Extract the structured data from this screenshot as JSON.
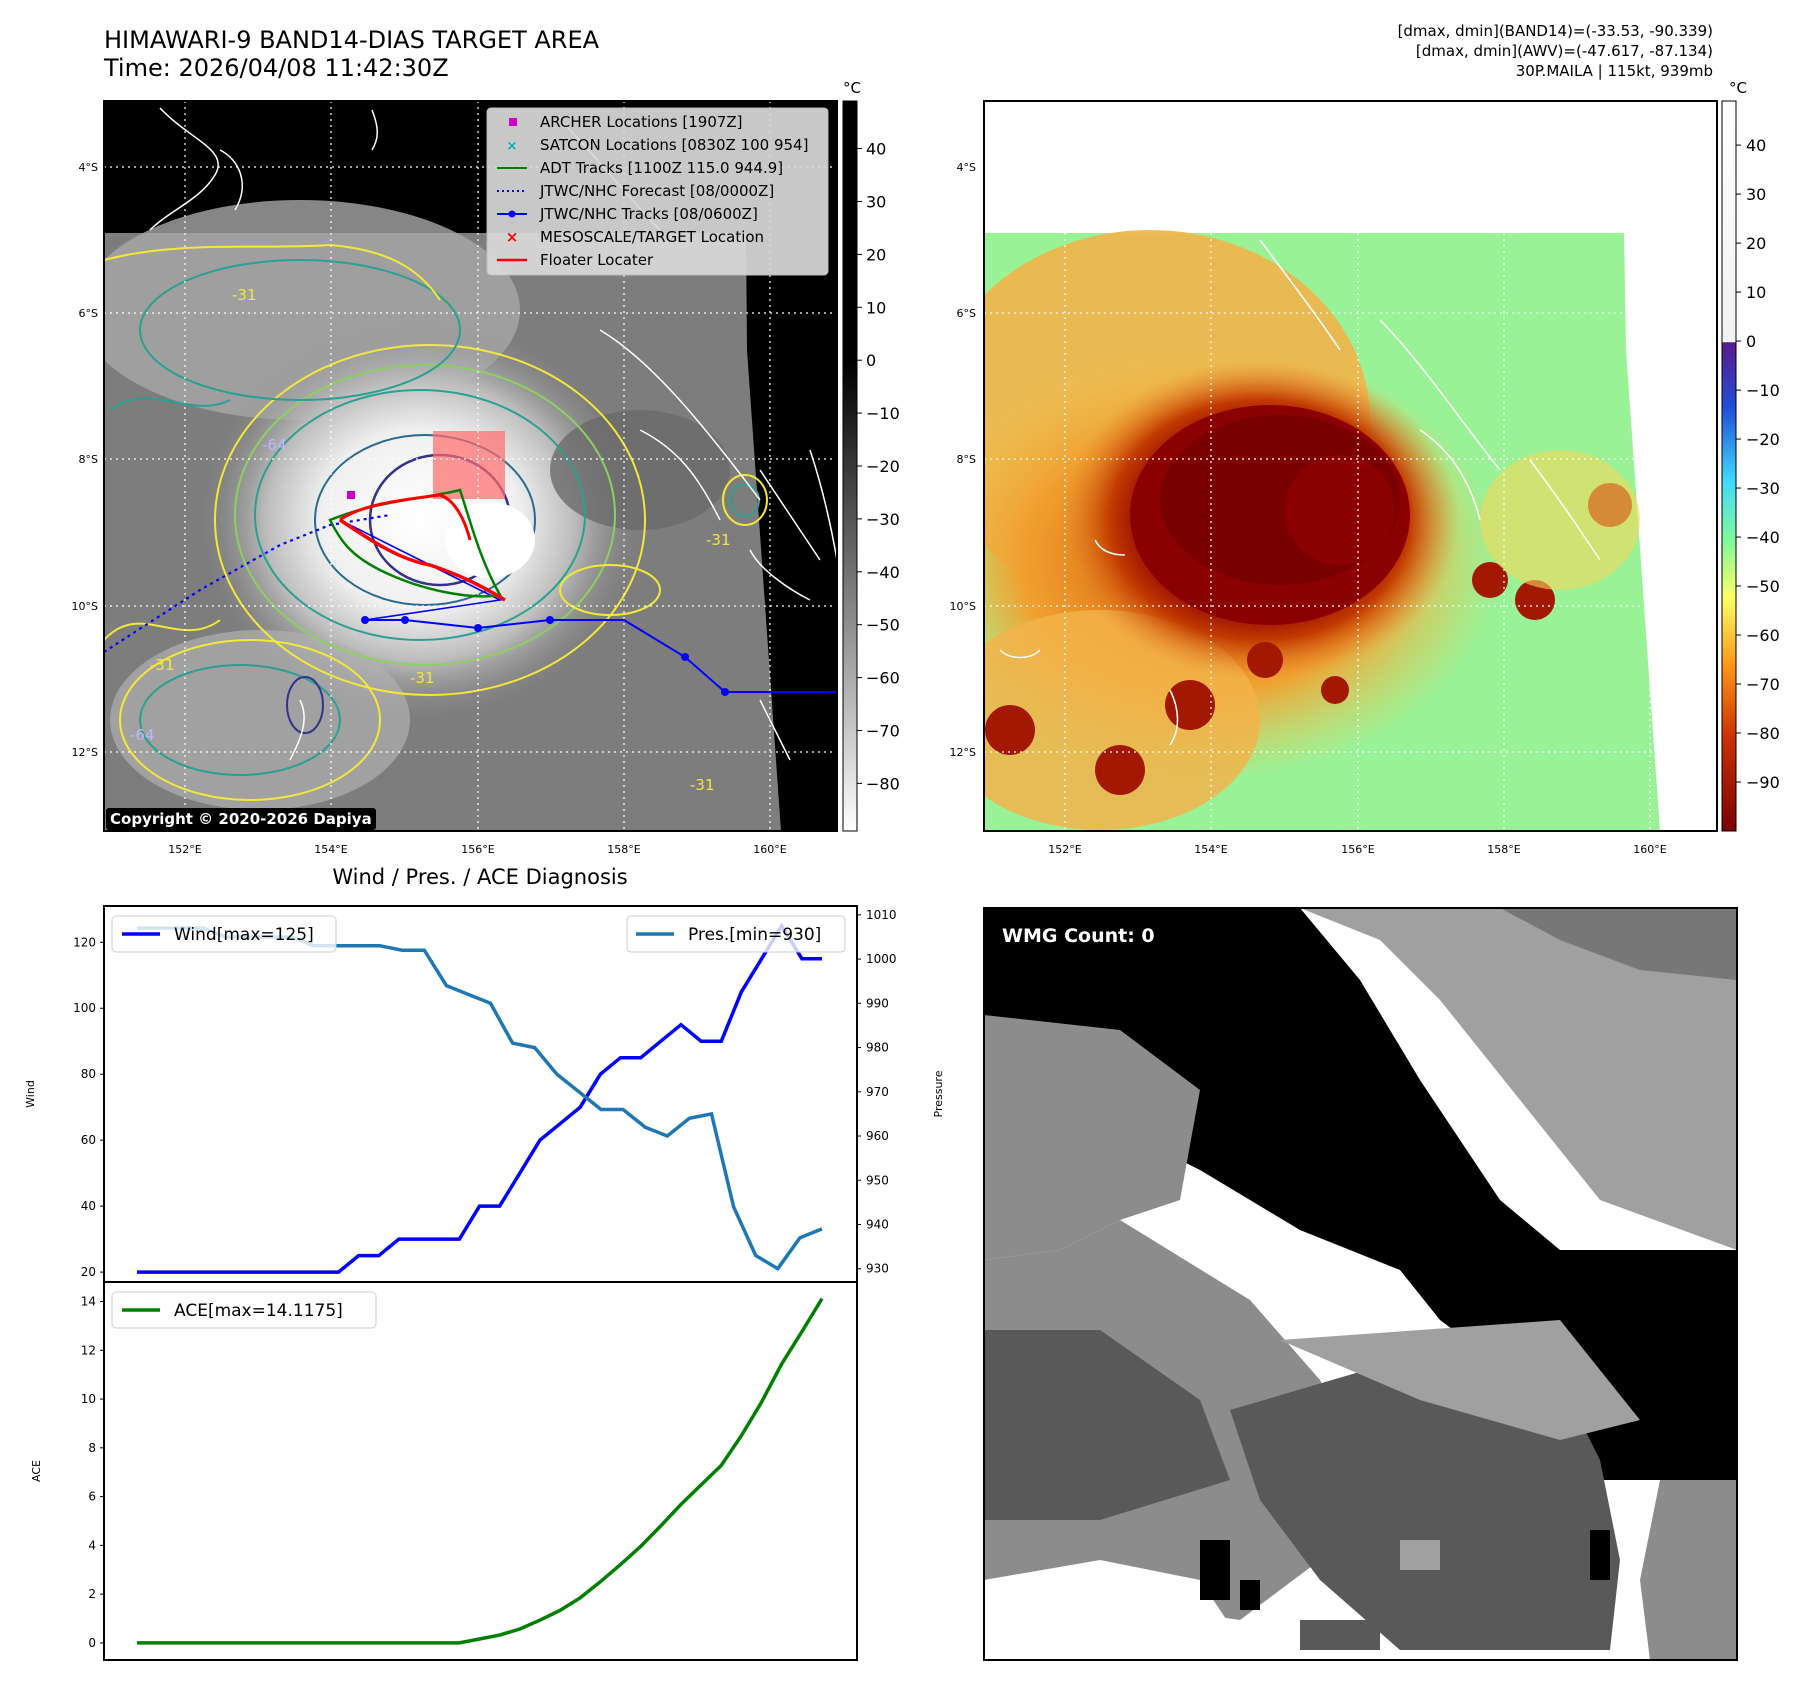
{
  "header": {
    "title_line1": "HIMAWARI-9 BAND14-DIAS TARGET AREA",
    "title_line2": "Time: 2026/04/08 11:42:30Z",
    "info_line1": "[dmax, dmin](BAND14)=(-33.53, -90.339)",
    "info_line2": "[dmax, dmin](AWV)=(-47.617, -87.134)",
    "info_line3": "30P.MAILA | 115kt, 939mb"
  },
  "map": {
    "lat_labels": [
      "4°S",
      "6°S",
      "8°S",
      "10°S",
      "12°S"
    ],
    "lon_labels": [
      "152°E",
      "154°E",
      "156°E",
      "158°E",
      "160°E"
    ],
    "copyright": "Copyright © 2020-2026 Dapiya",
    "legend": [
      {
        "label": "ARCHER Locations [1907Z]",
        "color": "#cc00cc",
        "marker": "square"
      },
      {
        "label": "SATCON Locations [0830Z 100 954]",
        "color": "#00c0c0",
        "marker": "x"
      },
      {
        "label": "ADT Tracks [1100Z 115.0 944.9]",
        "color": "#008000",
        "marker": "line"
      },
      {
        "label": "JTWC/NHC Forecast [08/0000Z]",
        "color": "#0000ff",
        "marker": "dotted"
      },
      {
        "label": "JTWC/NHC Tracks [08/0600Z]",
        "color": "#0000ff",
        "marker": "line-dot"
      },
      {
        "label": "MESOSCALE/TARGET Location",
        "color": "#ff0000",
        "marker": "x"
      },
      {
        "label": "Floater Locater",
        "color": "#ff0000",
        "marker": "line"
      }
    ],
    "contour_labels": [
      "-31",
      "-31",
      "-31",
      "-64",
      "-31",
      "-64",
      "-31"
    ]
  },
  "colorbar_gray": {
    "unit": "°C",
    "ticks": [
      "40",
      "30",
      "20",
      "10",
      "0",
      "−10",
      "−20",
      "−30",
      "−40",
      "−50",
      "−60",
      "−70",
      "−80"
    ]
  },
  "colorbar_color": {
    "unit": "°C",
    "ticks": [
      "40",
      "30",
      "20",
      "10",
      "0",
      "−10",
      "−20",
      "−30",
      "−40",
      "−50",
      "−60",
      "−70",
      "−80",
      "−90"
    ]
  },
  "wmg": {
    "label": "WMG Count: 0"
  },
  "chart_data": [
    {
      "type": "line",
      "title": "Wind / Pres. / ACE Diagnosis",
      "ylabel": "Wind",
      "y2label": "Pressure",
      "ylim": [
        17,
        131
      ],
      "y2lim": [
        927,
        1012
      ],
      "yticks": [
        "20",
        "40",
        "60",
        "80",
        "100",
        "120"
      ],
      "y2ticks": [
        "930",
        "940",
        "950",
        "960",
        "970",
        "980",
        "990",
        "1000",
        "1010"
      ],
      "series": [
        {
          "name": "Wind[max=125]",
          "color": "#0000ff",
          "values": [
            20,
            20,
            20,
            20,
            20,
            20,
            20,
            20,
            20,
            20,
            20,
            25,
            25,
            30,
            30,
            30,
            30,
            40,
            40,
            50,
            60,
            65,
            70,
            80,
            85,
            85,
            90,
            95,
            90,
            90,
            105,
            115,
            125,
            115,
            115
          ]
        },
        {
          "name": "Pres.[min=930]",
          "color": "#1f77b4",
          "values": [
            1007,
            1007,
            1007,
            1007,
            1005,
            1005,
            1005,
            1005,
            1003,
            1003,
            1003,
            1003,
            1002,
            1002,
            994,
            992,
            990,
            981,
            980,
            974,
            970,
            966,
            966,
            962,
            960,
            964,
            965,
            944,
            933,
            930,
            937,
            939
          ]
        }
      ]
    },
    {
      "type": "line",
      "ylabel": "ACE",
      "ylim": [
        -0.7,
        14.8
      ],
      "yticks": [
        "0",
        "2",
        "4",
        "6",
        "8",
        "10",
        "12",
        "14"
      ],
      "series": [
        {
          "name": "ACE[max=14.1175]",
          "color": "#008000",
          "values": [
            0,
            0,
            0,
            0,
            0,
            0,
            0,
            0,
            0,
            0,
            0,
            0,
            0,
            0,
            0,
            0,
            0,
            0.16,
            0.32,
            0.57,
            0.93,
            1.34,
            1.85,
            2.51,
            3.21,
            3.96,
            4.8,
            5.68,
            6.48,
            7.28,
            8.5,
            9.88,
            11.44,
            12.76,
            14.12
          ]
        }
      ]
    }
  ]
}
